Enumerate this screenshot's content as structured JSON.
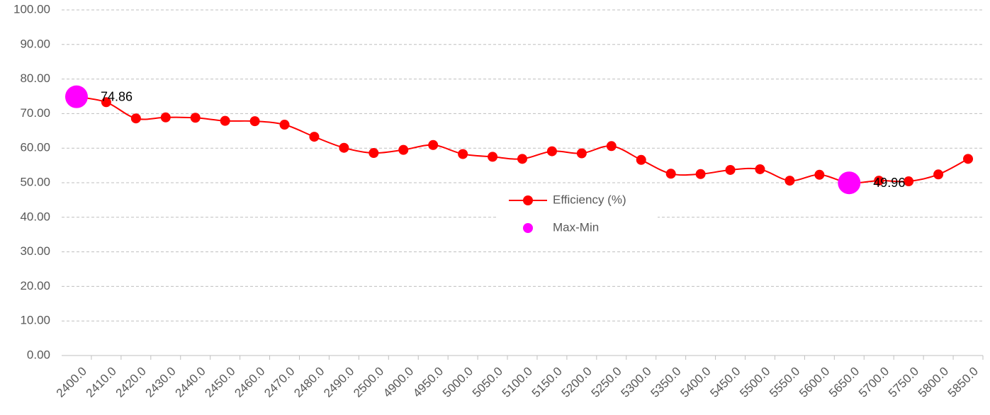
{
  "chart_data": {
    "type": "line",
    "categories": [
      "2400.0",
      "2410.0",
      "2420.0",
      "2430.0",
      "2440.0",
      "2450.0",
      "2460.0",
      "2470.0",
      "2480.0",
      "2490.0",
      "2500.0",
      "4900.0",
      "4950.0",
      "5000.0",
      "5050.0",
      "5100.0",
      "5150.0",
      "5200.0",
      "5250.0",
      "5300.0",
      "5350.0",
      "5400.0",
      "5450.0",
      "5500.0",
      "5550.0",
      "5600.0",
      "5650.0",
      "5700.0",
      "5750.0",
      "5800.0",
      "5850.0"
    ],
    "series": [
      {
        "name": "Efficiency (%)",
        "color": "#ff0000",
        "values": [
          74.86,
          73.3,
          68.6,
          68.9,
          68.8,
          67.9,
          67.8,
          66.8,
          63.3,
          60.1,
          58.6,
          59.5,
          60.9,
          58.3,
          57.5,
          56.9,
          59.1,
          58.5,
          60.6,
          56.6,
          52.6,
          52.5,
          53.7,
          53.9,
          50.6,
          52.3,
          49.96,
          50.6,
          50.4,
          52.4,
          56.9
        ]
      },
      {
        "name": "Max-Min",
        "color": "#ff00ff",
        "values": [
          74.86,
          null,
          null,
          null,
          null,
          null,
          null,
          null,
          null,
          null,
          null,
          null,
          null,
          null,
          null,
          null,
          null,
          null,
          null,
          null,
          null,
          null,
          null,
          null,
          null,
          null,
          49.96,
          null,
          null,
          null,
          null
        ],
        "value_labels": [
          "74.86",
          null,
          null,
          null,
          null,
          null,
          null,
          null,
          null,
          null,
          null,
          null,
          null,
          null,
          null,
          null,
          null,
          null,
          null,
          null,
          null,
          null,
          null,
          null,
          null,
          null,
          "49.96",
          null,
          null,
          null,
          null
        ]
      }
    ],
    "ylim": [
      0,
      100
    ],
    "yticks": [
      {
        "value": 0,
        "label": "0.00"
      },
      {
        "value": 10,
        "label": "10.00"
      },
      {
        "value": 20,
        "label": "20.00"
      },
      {
        "value": 30,
        "label": "30.00"
      },
      {
        "value": 40,
        "label": "40.00"
      },
      {
        "value": 50,
        "label": "50.00"
      },
      {
        "value": 60,
        "label": "60.00"
      },
      {
        "value": 70,
        "label": "70.00"
      },
      {
        "value": 80,
        "label": "80.00"
      },
      {
        "value": 90,
        "label": "90.00"
      },
      {
        "value": 100,
        "label": "100.00"
      }
    ],
    "grid": true,
    "legend": "center"
  }
}
